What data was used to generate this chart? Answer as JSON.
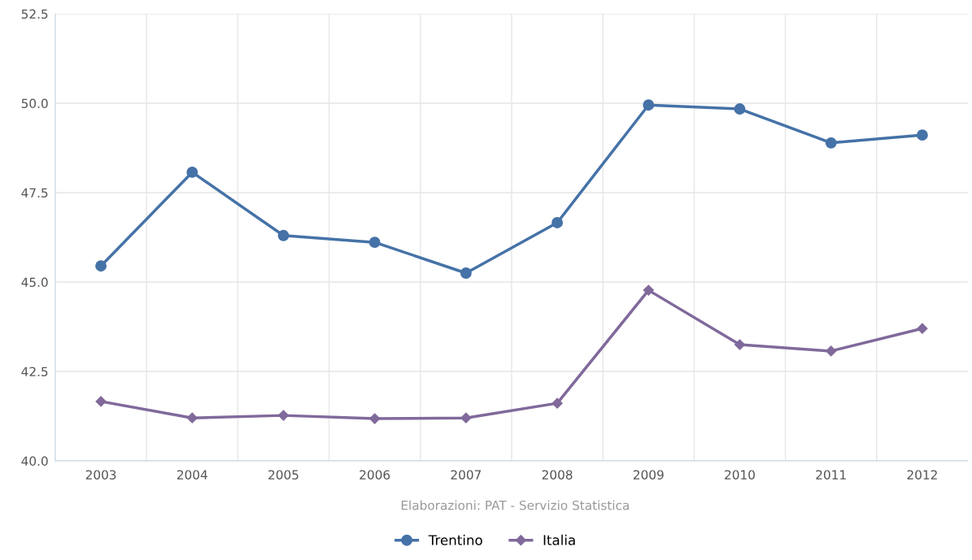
{
  "chart_data": {
    "type": "line",
    "categories": [
      "2003",
      "2004",
      "2005",
      "2006",
      "2007",
      "2008",
      "2009",
      "2010",
      "2011",
      "2012"
    ],
    "series": [
      {
        "name": "Trentino",
        "color": "#4572a7",
        "marker": "circle",
        "values": [
          45.45,
          48.07,
          46.3,
          46.11,
          45.25,
          46.66,
          49.95,
          49.84,
          48.89,
          49.11
        ]
      },
      {
        "name": "Italia",
        "color": "#80699b",
        "marker": "diamond",
        "values": [
          41.66,
          41.2,
          41.27,
          41.18,
          41.2,
          41.61,
          44.77,
          43.25,
          43.07,
          43.7
        ]
      }
    ],
    "ylim": [
      40.0,
      52.5
    ],
    "yticks": [
      {
        "value": 40.0,
        "label": "40.0"
      },
      {
        "value": 42.5,
        "label": "42.5"
      },
      {
        "value": 45.0,
        "label": "45.0"
      },
      {
        "value": 47.5,
        "label": "47.5"
      },
      {
        "value": 50.0,
        "label": "50.0"
      },
      {
        "value": 52.5,
        "label": "52.5"
      }
    ],
    "grid": true,
    "legend": "bottom",
    "line_style": "solid",
    "annotations": [
      "Elaborazioni: PAT - Servizio Statistica"
    ]
  }
}
